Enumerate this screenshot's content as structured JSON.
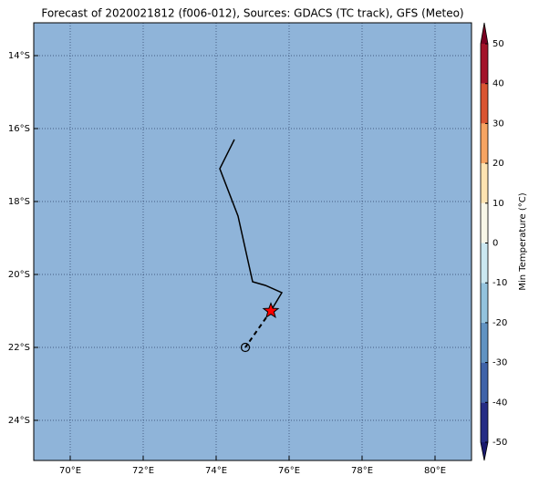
{
  "chart_data": {
    "type": "map",
    "title": "Forecast of 2020021812 (f006-012), Sources: GDACS (TC track), GFS (Meteo)",
    "field_color": "#8fb4d9",
    "xlim": [
      69,
      81
    ],
    "ylim": [
      -13.1,
      -25.1
    ],
    "xticks": [
      {
        "value": 70,
        "label": "70°E"
      },
      {
        "value": 72,
        "label": "72°E"
      },
      {
        "value": 74,
        "label": "74°E"
      },
      {
        "value": 76,
        "label": "76°E"
      },
      {
        "value": 78,
        "label": "78°E"
      },
      {
        "value": 80,
        "label": "80°E"
      }
    ],
    "yticks": [
      {
        "value": -14,
        "label": "14°S"
      },
      {
        "value": -16,
        "label": "16°S"
      },
      {
        "value": -18,
        "label": "18°S"
      },
      {
        "value": -20,
        "label": "20°S"
      },
      {
        "value": -22,
        "label": "22°S"
      },
      {
        "value": -24,
        "label": "24°S"
      }
    ],
    "grid": true,
    "track": {
      "color": "#000000",
      "x": [
        74.5,
        74.1,
        74.6,
        75.0,
        75.35,
        75.8,
        75.5
      ],
      "y": [
        -16.3,
        -17.1,
        -18.4,
        -20.2,
        -20.3,
        -20.5,
        -21.0
      ]
    },
    "forecast": {
      "color": "#000000",
      "x": [
        75.5,
        74.8
      ],
      "y": [
        -21.0,
        -22.0
      ]
    },
    "current_marker_color": "#ff0000",
    "colorbar": {
      "label": "Min Temperature (°C)",
      "lim": [
        -50,
        50
      ],
      "ticks": [
        -50,
        -40,
        -30,
        -20,
        -10,
        0,
        10,
        20,
        30,
        40,
        50
      ],
      "colors": [
        "#252c85",
        "#3f63a9",
        "#6193c2",
        "#93c3dd",
        "#cbe8f1",
        "#f8f7e8",
        "#fde3b1",
        "#f6a462",
        "#da5532",
        "#a3132a"
      ],
      "under_color": "#1a1a6e",
      "over_color": "#7a0022"
    }
  }
}
